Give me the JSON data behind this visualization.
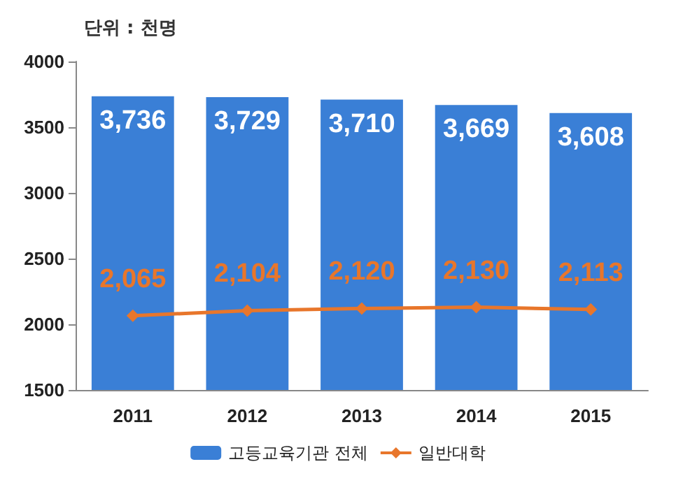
{
  "chart_data": {
    "type": "bar",
    "annotations": [
      "단위 : 천명"
    ],
    "categories": [
      "2011",
      "2012",
      "2013",
      "2014",
      "2015"
    ],
    "series": [
      {
        "name": "고등교육기관 전체",
        "color": "#3a7fd6",
        "values": [
          3736,
          3729,
          3710,
          3669,
          3608
        ],
        "value_labels": [
          "3,736",
          "3,729",
          "3,710",
          "3,669",
          "3,608"
        ]
      },
      {
        "name": "일반대학",
        "type": "line",
        "color": "#e8762b",
        "values": [
          2065,
          2104,
          2120,
          2130,
          2113
        ],
        "value_labels": [
          "2,065",
          "2,104",
          "2,120",
          "2,130",
          "2,113"
        ]
      }
    ],
    "ylim": [
      1500,
      4000
    ],
    "yticks": [
      1500,
      2000,
      2500,
      3000,
      3500,
      4000
    ],
    "grid": false,
    "legend": "bottom",
    "marker": "diamond",
    "line_style": "solid"
  }
}
